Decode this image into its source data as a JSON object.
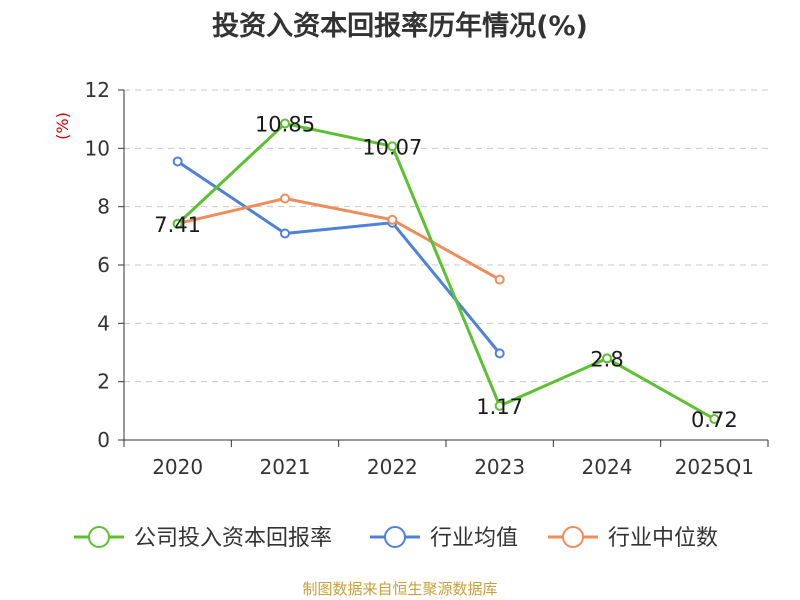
{
  "chart_data": {
    "type": "line",
    "title": "投资入资本回报率历年情况(%)",
    "ylabel": "(%)",
    "xlabel": "",
    "ylim": [
      0,
      12
    ],
    "yticks": [
      "0",
      "2",
      "4",
      "6",
      "8",
      "10",
      "12"
    ],
    "categories": [
      "2020",
      "2021",
      "2022",
      "2023",
      "2024",
      "2025Q1"
    ],
    "grid": true,
    "legend_position": "bottom",
    "series": [
      {
        "name": "公司投入资本回报率",
        "color": "#5cc130",
        "values": [
          7.41,
          10.85,
          10.07,
          1.17,
          2.8,
          0.72
        ],
        "labels": [
          "7.41",
          "10.85",
          "10.07",
          "1.17",
          "2.8",
          "0.72"
        ]
      },
      {
        "name": "行业均值",
        "color": "#4f81d9",
        "values": [
          9.55,
          7.08,
          7.45,
          2.97,
          null,
          null
        ]
      },
      {
        "name": "行业中位数",
        "color": "#f08c5a",
        "values": [
          7.42,
          8.28,
          7.55,
          5.5,
          null,
          null
        ]
      }
    ]
  },
  "source_text": "制图数据来自恒生聚源数据库"
}
